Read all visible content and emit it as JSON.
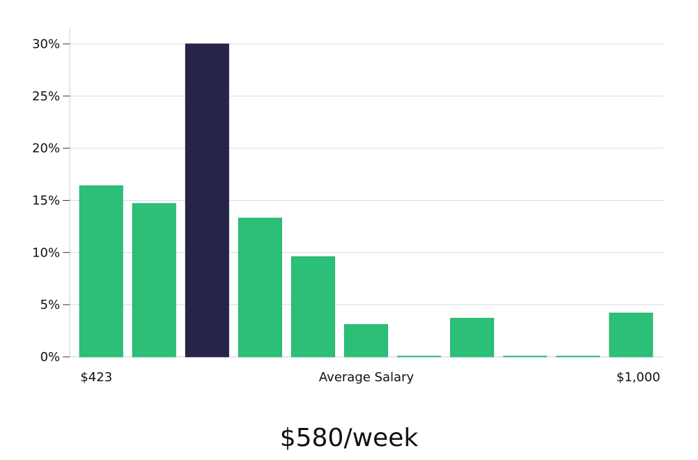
{
  "chart_data": {
    "type": "bar",
    "values": [
      16.4,
      14.7,
      30.0,
      13.3,
      9.6,
      3.1,
      0,
      3.7,
      0,
      0,
      4.2
    ],
    "highlight_index": 2,
    "ylim": [
      0,
      30
    ],
    "yticks": [
      0,
      5,
      10,
      15,
      20,
      25,
      30
    ],
    "ytick_labels": [
      "0%",
      "5%",
      "10%",
      "15%",
      "20%",
      "25%",
      "30%"
    ],
    "xlabel": "Average Salary",
    "x_min_label": "$423",
    "x_max_label": "$1,000",
    "grid": true,
    "colors": {
      "bar": "#2bbf78",
      "highlight": "#27244a",
      "grid": "#d9d9d9",
      "axis": "#cccccc"
    }
  },
  "caption": "$580/week"
}
